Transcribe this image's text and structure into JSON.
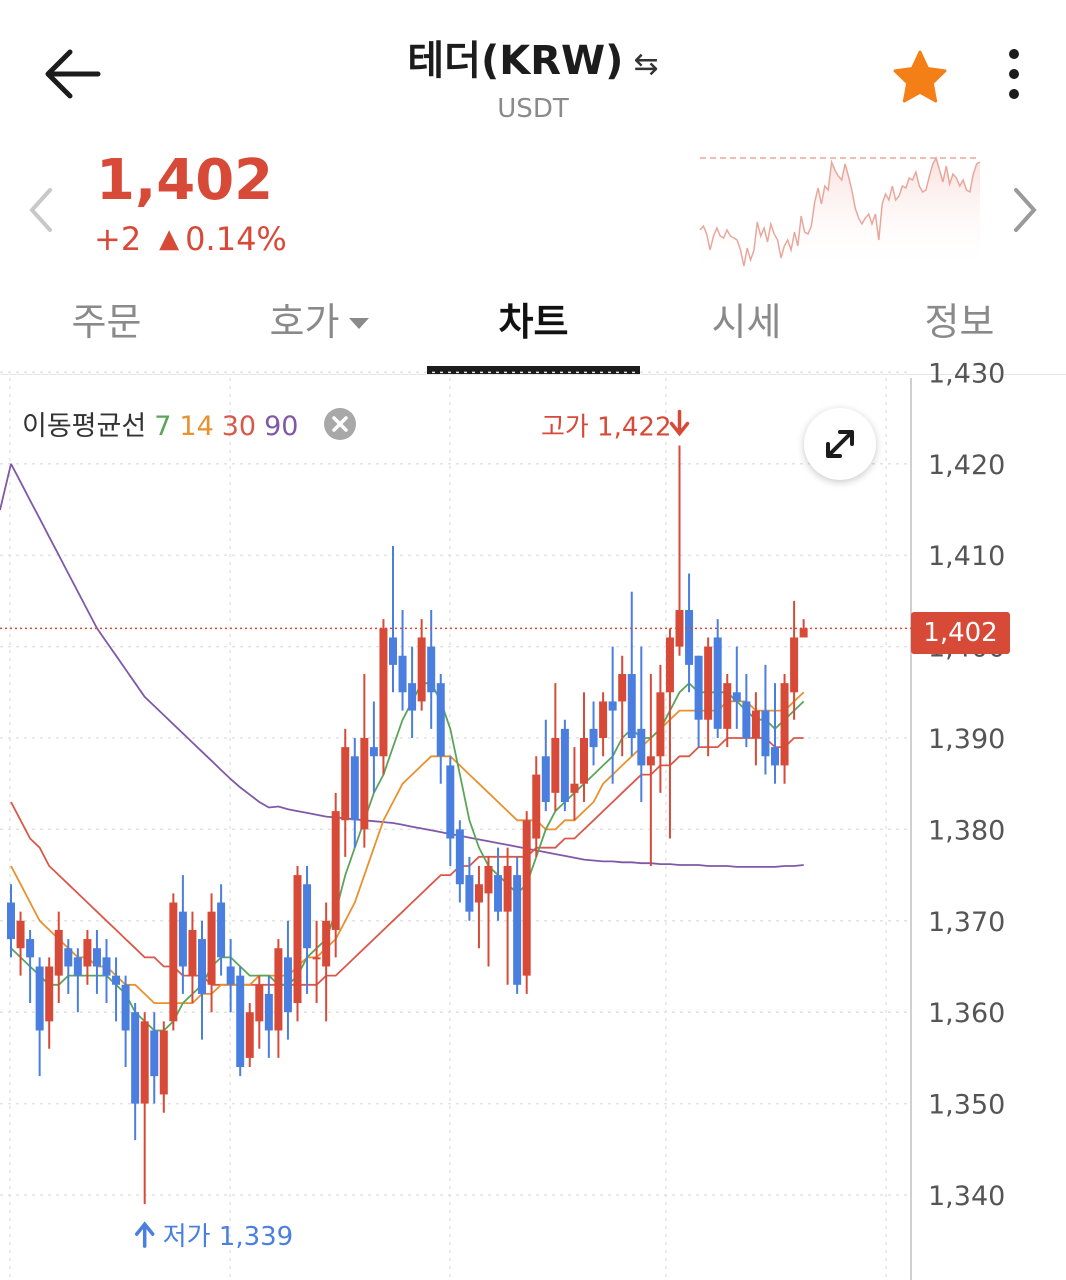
{
  "header": {
    "title": "테더(KRW)",
    "swap_icon": "⇆",
    "subtitle": "USDT",
    "back_icon": "arrow-left-icon",
    "favorite_icon": "star-icon",
    "favorite_color": "#f57f17",
    "more_icon": "more-vertical-icon"
  },
  "ticker": {
    "price": "1,402",
    "change": "+2",
    "change_rate": "0.14%",
    "color_up": "#d84a38",
    "color_down": "#4a7fe0"
  },
  "tabs": [
    {
      "label": "주문",
      "active": false
    },
    {
      "label": "호가",
      "active": false,
      "dropdown": true
    },
    {
      "label": "차트",
      "active": true
    },
    {
      "label": "시세",
      "active": false
    },
    {
      "label": "정보",
      "active": false
    }
  ],
  "chart_legend": {
    "title": "이동평균선",
    "periods": [
      {
        "value": "7",
        "color": "#5aa55a"
      },
      {
        "value": "14",
        "color": "#e8912e"
      },
      {
        "value": "30",
        "color": "#d9584a"
      },
      {
        "value": "90",
        "color": "#7f59a8"
      }
    ]
  },
  "chart_data": {
    "type": "candlestick",
    "y_ticks": [
      "1,430",
      "1,420",
      "1,410",
      "1,400",
      "1,390",
      "1,380",
      "1,370",
      "1,360",
      "1,350",
      "1,340"
    ],
    "ylim": [
      1336,
      1432
    ],
    "current_price": "1,402",
    "current_price_value": 1402,
    "high_label": "고가 1,422",
    "high_value": 1422,
    "low_label": "저가 1,339",
    "low_value": 1339,
    "candles": [
      [
        1372,
        1368,
        1374,
        1366
      ],
      [
        1367,
        1370,
        1371,
        1364
      ],
      [
        1368,
        1366,
        1369,
        1361
      ],
      [
        1365,
        1358,
        1366,
        1353
      ],
      [
        1359,
        1365,
        1366,
        1356
      ],
      [
        1364,
        1369,
        1371,
        1361
      ],
      [
        1367,
        1365,
        1368,
        1362
      ],
      [
        1366,
        1364,
        1367,
        1360
      ],
      [
        1365,
        1368,
        1369,
        1363
      ],
      [
        1367,
        1365,
        1369,
        1362
      ],
      [
        1366,
        1364,
        1368,
        1361
      ],
      [
        1364,
        1363,
        1366,
        1359
      ],
      [
        1363,
        1358,
        1364,
        1354
      ],
      [
        1360,
        1350,
        1361,
        1346
      ],
      [
        1350,
        1359,
        1360,
        1339
      ],
      [
        1358,
        1353,
        1360,
        1350
      ],
      [
        1351,
        1358,
        1359,
        1349
      ],
      [
        1359,
        1372,
        1373,
        1358
      ],
      [
        1371,
        1365,
        1375,
        1362
      ],
      [
        1364,
        1369,
        1371,
        1361
      ],
      [
        1368,
        1362,
        1370,
        1357
      ],
      [
        1363,
        1371,
        1373,
        1360
      ],
      [
        1372,
        1366,
        1374,
        1364
      ],
      [
        1365,
        1363,
        1368,
        1360
      ],
      [
        1364,
        1354,
        1365,
        1353
      ],
      [
        1355,
        1360,
        1361,
        1354
      ],
      [
        1359,
        1363,
        1364,
        1356
      ],
      [
        1362,
        1358,
        1364,
        1355
      ],
      [
        1358,
        1367,
        1368,
        1355
      ],
      [
        1366,
        1360,
        1370,
        1357
      ],
      [
        1361,
        1375,
        1376,
        1359
      ],
      [
        1374,
        1367,
        1376,
        1362
      ],
      [
        1366,
        1366,
        1370,
        1361
      ],
      [
        1365,
        1370,
        1372,
        1359
      ],
      [
        1369,
        1382,
        1384,
        1366
      ],
      [
        1381,
        1389,
        1391,
        1377
      ],
      [
        1388,
        1381,
        1390,
        1378
      ],
      [
        1380,
        1390,
        1397,
        1378
      ],
      [
        1389,
        1388,
        1394,
        1384
      ],
      [
        1388,
        1402,
        1403,
        1386
      ],
      [
        1401,
        1398,
        1411,
        1395
      ],
      [
        1399,
        1395,
        1404,
        1393
      ],
      [
        1396,
        1393,
        1400,
        1390
      ],
      [
        1394,
        1401,
        1403,
        1393
      ],
      [
        1400,
        1395,
        1404,
        1391
      ],
      [
        1396,
        1388,
        1397,
        1385
      ],
      [
        1387,
        1379,
        1388,
        1376
      ],
      [
        1380,
        1374,
        1381,
        1372
      ],
      [
        1375,
        1371,
        1377,
        1370
      ],
      [
        1372,
        1374,
        1376,
        1367
      ],
      [
        1373,
        1376,
        1377,
        1365
      ],
      [
        1375,
        1371,
        1378,
        1370
      ],
      [
        1371,
        1376,
        1378,
        1363
      ],
      [
        1375,
        1363,
        1377,
        1362
      ],
      [
        1364,
        1381,
        1382,
        1362
      ],
      [
        1379,
        1386,
        1388,
        1377
      ],
      [
        1388,
        1383,
        1392,
        1382
      ],
      [
        1384,
        1390,
        1396,
        1382
      ],
      [
        1391,
        1383,
        1392,
        1382
      ],
      [
        1384,
        1385,
        1389,
        1381
      ],
      [
        1385,
        1390,
        1395,
        1383
      ],
      [
        1391,
        1389,
        1394,
        1387
      ],
      [
        1390,
        1394,
        1395,
        1388
      ],
      [
        1394,
        1393,
        1400,
        1385
      ],
      [
        1394,
        1397,
        1399,
        1388
      ],
      [
        1397,
        1390,
        1406,
        1388
      ],
      [
        1391,
        1387,
        1400,
        1383
      ],
      [
        1387,
        1388,
        1397,
        1376
      ],
      [
        1388,
        1395,
        1398,
        1384
      ],
      [
        1395,
        1401,
        1402,
        1379
      ],
      [
        1400,
        1404,
        1422,
        1399
      ],
      [
        1404,
        1398,
        1408,
        1395
      ],
      [
        1399,
        1392,
        1399,
        1389
      ],
      [
        1392,
        1400,
        1401,
        1388
      ],
      [
        1401,
        1391,
        1403,
        1390
      ],
      [
        1391,
        1396,
        1397,
        1389
      ],
      [
        1395,
        1394,
        1400,
        1391
      ],
      [
        1394,
        1390,
        1397,
        1389
      ],
      [
        1390,
        1393,
        1395,
        1387
      ],
      [
        1393,
        1388,
        1398,
        1386
      ],
      [
        1389,
        1387,
        1396,
        1385
      ],
      [
        1387,
        1396,
        1397,
        1385
      ],
      [
        1395,
        1401,
        1405,
        1392
      ],
      [
        1401,
        1402,
        1403,
        1401
      ]
    ],
    "ma7": [
      1367,
      1366,
      1365,
      1364,
      1363,
      1363,
      1364,
      1364,
      1364,
      1364,
      1364,
      1363,
      1362,
      1360,
      1359,
      1358,
      1358,
      1359,
      1361,
      1362,
      1363,
      1365,
      1366,
      1366,
      1365,
      1364,
      1364,
      1364,
      1363,
      1363,
      1364,
      1366,
      1367,
      1368,
      1371,
      1375,
      1378,
      1381,
      1384,
      1386,
      1389,
      1392,
      1394,
      1396,
      1396,
      1394,
      1391,
      1386,
      1381,
      1378,
      1376,
      1375,
      1374,
      1373,
      1374,
      1377,
      1380,
      1382,
      1383,
      1384,
      1385,
      1386,
      1387,
      1388,
      1390,
      1391,
      1390,
      1390,
      1391,
      1393,
      1395,
      1396,
      1395,
      1395,
      1395,
      1395,
      1394,
      1393,
      1392,
      1392,
      1391,
      1392,
      1393,
      1394
    ],
    "ma14": [
      1376,
      1374,
      1372,
      1370,
      1369,
      1368,
      1367,
      1366,
      1366,
      1365,
      1365,
      1364,
      1363,
      1363,
      1362,
      1361,
      1361,
      1361,
      1361,
      1361,
      1362,
      1362,
      1363,
      1363,
      1363,
      1363,
      1364,
      1364,
      1364,
      1364,
      1365,
      1366,
      1366,
      1367,
      1368,
      1370,
      1372,
      1375,
      1378,
      1381,
      1383,
      1385,
      1386,
      1387,
      1388,
      1388,
      1388,
      1387,
      1386,
      1385,
      1384,
      1383,
      1382,
      1381,
      1381,
      1381,
      1380,
      1380,
      1381,
      1381,
      1382,
      1383,
      1385,
      1386,
      1387,
      1388,
      1389,
      1390,
      1391,
      1392,
      1393,
      1393,
      1393,
      1393,
      1393,
      1394,
      1394,
      1394,
      1393,
      1393,
      1393,
      1393,
      1394,
      1395
    ],
    "ma30": [
      1383,
      1381,
      1379,
      1378,
      1376,
      1375,
      1374,
      1373,
      1372,
      1371,
      1370,
      1369,
      1368,
      1367,
      1366,
      1366,
      1365,
      1365,
      1364,
      1364,
      1364,
      1363,
      1363,
      1363,
      1363,
      1363,
      1363,
      1363,
      1363,
      1363,
      1363,
      1363,
      1363,
      1364,
      1364,
      1365,
      1366,
      1367,
      1368,
      1369,
      1370,
      1371,
      1372,
      1373,
      1374,
      1375,
      1375,
      1376,
      1376,
      1377,
      1377,
      1377,
      1377,
      1377,
      1377,
      1378,
      1378,
      1378,
      1379,
      1379,
      1380,
      1381,
      1382,
      1383,
      1384,
      1385,
      1386,
      1386,
      1387,
      1387,
      1388,
      1388,
      1389,
      1389,
      1389,
      1390,
      1390,
      1390,
      1390,
      1390,
      1389,
      1389,
      1390,
      1390
    ],
    "ma90": [
      1420,
      1418,
      1416,
      1414,
      1412,
      1410,
      1408,
      1406,
      1404,
      1402,
      1400.5,
      1399,
      1397.5,
      1396,
      1394.5,
      1393.5,
      1392.5,
      1391.5,
      1390.5,
      1389.5,
      1388.5,
      1387.5,
      1386.5,
      1385.5,
      1384.6,
      1383.8,
      1383,
      1382.4,
      1382.5,
      1382.2,
      1382,
      1381.8,
      1381.6,
      1381.4,
      1381.3,
      1381.2,
      1381.1,
      1381,
      1380.9,
      1380.8,
      1380.7,
      1380.5,
      1380.3,
      1380.1,
      1379.9,
      1379.7,
      1379.5,
      1379.3,
      1379.1,
      1378.9,
      1378.7,
      1378.5,
      1378.3,
      1378.1,
      1377.9,
      1377.7,
      1377.5,
      1377.3,
      1377.1,
      1376.9,
      1376.7,
      1376.6,
      1376.5,
      1376.5,
      1376.4,
      1376.4,
      1376.3,
      1376.3,
      1376.2,
      1376.2,
      1376.1,
      1376.1,
      1376.1,
      1376,
      1376,
      1376,
      1375.9,
      1375.9,
      1375.9,
      1375.9,
      1375.9,
      1376,
      1376,
      1376.1
    ]
  }
}
